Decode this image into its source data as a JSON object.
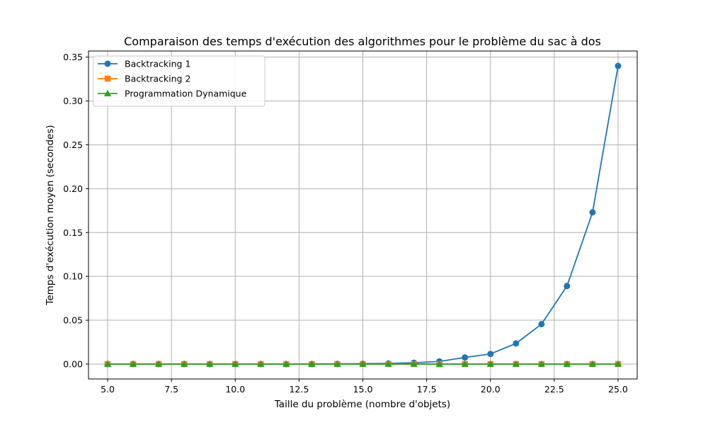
{
  "chart_data": {
    "type": "line",
    "title": "Comparaison des temps d'exécution des algorithmes pour le problème du sac à dos",
    "xlabel": "Taille du problème (nombre d'objets)",
    "ylabel": "Temps d'exécution moyen (secondes)",
    "xlim": [
      4.25,
      25.75
    ],
    "ylim": [
      -0.017,
      0.357
    ],
    "xticks": [
      5.0,
      7.5,
      10.0,
      12.5,
      15.0,
      17.5,
      20.0,
      22.5,
      25.0
    ],
    "xtick_labels": [
      "5.0",
      "7.5",
      "10.0",
      "12.5",
      "15.0",
      "17.5",
      "20.0",
      "22.5",
      "25.0"
    ],
    "yticks": [
      0.0,
      0.05,
      0.1,
      0.15,
      0.2,
      0.25,
      0.3,
      0.35
    ],
    "ytick_labels": [
      "0.00",
      "0.05",
      "0.10",
      "0.15",
      "0.20",
      "0.25",
      "0.30",
      "0.35"
    ],
    "grid": true,
    "legend_position": "top-left",
    "x": [
      5,
      6,
      7,
      8,
      9,
      10,
      11,
      12,
      13,
      14,
      15,
      16,
      17,
      18,
      19,
      20,
      21,
      22,
      23,
      24,
      25
    ],
    "series": [
      {
        "name": "Backtracking 1",
        "color": "#1f77b4",
        "marker": "circle",
        "values": [
          0.0,
          0.0,
          0.0,
          0.0,
          0.0,
          0.0,
          0.0,
          0.0,
          0.0001,
          0.0002,
          0.0004,
          0.0007,
          0.0015,
          0.003,
          0.0075,
          0.0115,
          0.0235,
          0.0455,
          0.089,
          0.173,
          0.34
        ]
      },
      {
        "name": "Backtracking 2",
        "color": "#ff7f0e",
        "marker": "square",
        "values": [
          0.0,
          0.0,
          0.0,
          0.0,
          0.0,
          0.0,
          0.0,
          0.0,
          0.0,
          0.0,
          0.0,
          0.0,
          0.0,
          0.0,
          0.0,
          0.0,
          0.0,
          0.0,
          0.0,
          0.0,
          0.0
        ]
      },
      {
        "name": "Programmation Dynamique",
        "color": "#2ca02c",
        "marker": "triangle",
        "values": [
          0.0,
          0.0,
          0.0,
          0.0,
          0.0,
          0.0,
          0.0,
          0.0,
          0.0,
          0.0,
          0.0,
          0.0,
          0.0,
          0.0,
          0.0,
          0.0,
          0.0,
          0.0,
          0.0,
          0.0,
          0.0
        ]
      }
    ]
  }
}
